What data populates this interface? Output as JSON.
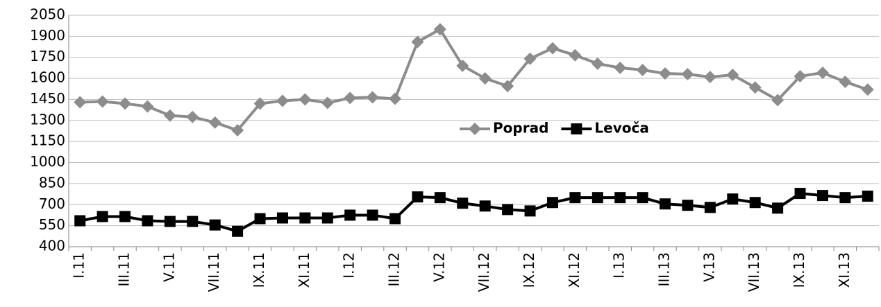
{
  "chart_data": {
    "type": "line",
    "categories": [
      "I.11",
      null,
      "III.11",
      null,
      "V.11",
      null,
      "VII.11",
      null,
      "IX.11",
      null,
      "XI.11",
      null,
      "I.12",
      null,
      "III.12",
      null,
      "V.12",
      null,
      "VII.12",
      null,
      "IX.12",
      null,
      "XI.12",
      null,
      "I.13",
      null,
      "III.13",
      null,
      "V.13",
      null,
      "VII.13",
      null,
      "IX.13",
      null,
      "XI.13",
      null
    ],
    "series": [
      {
        "name": "Poprad",
        "color": "#8c8c8c",
        "marker": "diamond",
        "values": [
          1430,
          1435,
          1420,
          1400,
          1335,
          1325,
          1285,
          1230,
          1420,
          1440,
          1450,
          1425,
          1460,
          1465,
          1455,
          1860,
          1950,
          1690,
          1600,
          1545,
          1740,
          1815,
          1765,
          1705,
          1675,
          1660,
          1635,
          1630,
          1610,
          1625,
          1535,
          1445,
          1615,
          1640,
          1575,
          1520
        ]
      },
      {
        "name": "Levoča",
        "color": "#000000",
        "marker": "square",
        "values": [
          585,
          615,
          615,
          585,
          580,
          580,
          555,
          510,
          600,
          605,
          605,
          605,
          625,
          625,
          600,
          755,
          750,
          710,
          690,
          665,
          655,
          715,
          750,
          750,
          750,
          750,
          705,
          695,
          680,
          740,
          715,
          675,
          780,
          765,
          750,
          760
        ]
      }
    ],
    "ylim": [
      400,
      2050
    ],
    "yticks": [
      400,
      550,
      700,
      850,
      1000,
      1150,
      1300,
      1450,
      1600,
      1750,
      1900,
      2050
    ],
    "grid": true,
    "legend": "center"
  }
}
